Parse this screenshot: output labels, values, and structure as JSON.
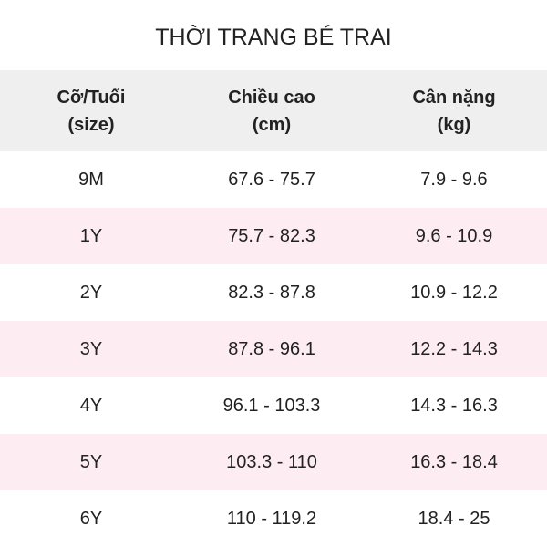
{
  "title": "THỜI TRANG BÉ TRAI",
  "colors": {
    "header_bg": "#efefef",
    "alt_row_bg": "#fdedf3"
  },
  "headers": [
    {
      "line1": "Cỡ/Tuổi",
      "line2": "(size)"
    },
    {
      "line1": "Chiều cao",
      "line2": "(cm)"
    },
    {
      "line1": "Cân nặng",
      "line2": "(kg)"
    }
  ],
  "rows": [
    {
      "size": "9M",
      "height": "67.6 - 75.7",
      "weight": "7.9 - 9.6"
    },
    {
      "size": "1Y",
      "height": "75.7 - 82.3",
      "weight": "9.6 - 10.9"
    },
    {
      "size": "2Y",
      "height": "82.3 - 87.8",
      "weight": "10.9 - 12.2"
    },
    {
      "size": "3Y",
      "height": "87.8 - 96.1",
      "weight": "12.2 - 14.3"
    },
    {
      "size": "4Y",
      "height": "96.1 - 103.3",
      "weight": "14.3 - 16.3"
    },
    {
      "size": "5Y",
      "height": "103.3 - 110",
      "weight": "16.3 - 18.4"
    },
    {
      "size": "6Y",
      "height": "110 - 119.2",
      "weight": "18.4 - 25"
    }
  ]
}
